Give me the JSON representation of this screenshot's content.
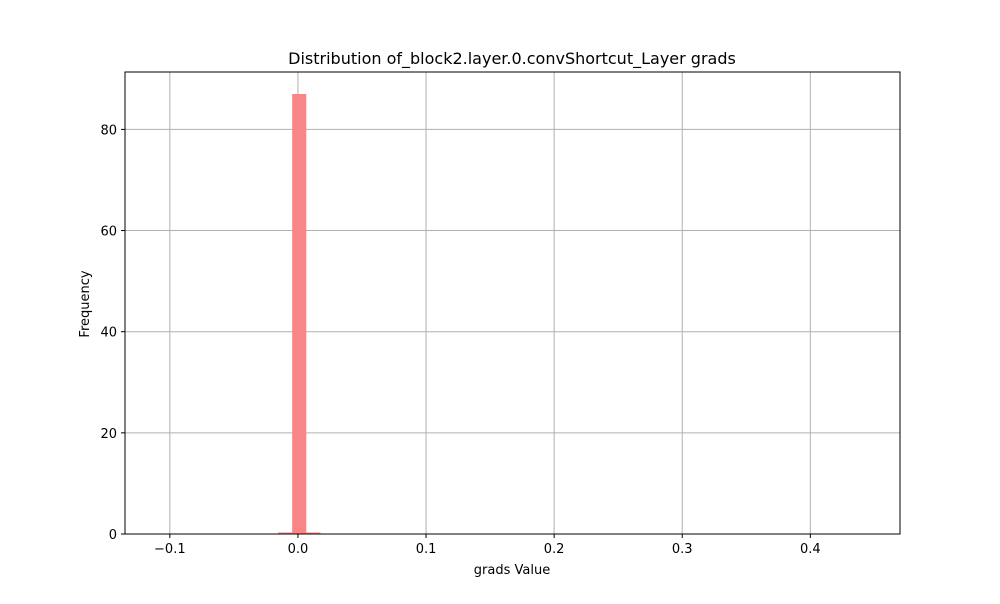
{
  "chart_data": {
    "type": "bar",
    "title": "Distribution of_block2.layer.0.convShortcut_Layer grads",
    "xlabel": "grads Value",
    "ylabel": "Frequency",
    "xlim": [
      -0.135,
      0.47
    ],
    "ylim": [
      0,
      91.35
    ],
    "xticks": [
      -0.1,
      0.0,
      0.1,
      0.2,
      0.3,
      0.4
    ],
    "xtick_labels": [
      "−0.1",
      "0.0",
      "0.1",
      "0.2",
      "0.3",
      "0.4"
    ],
    "yticks": [
      0,
      20,
      40,
      60,
      80
    ],
    "ytick_labels": [
      "0",
      "20",
      "40",
      "60",
      "80"
    ],
    "grid": true,
    "bar_color": "#f88686",
    "bins": [
      {
        "x0": -0.0155,
        "x1": -0.0045,
        "count": 0.3
      },
      {
        "x0": -0.0045,
        "x1": 0.0065,
        "count": 87
      },
      {
        "x0": 0.0065,
        "x1": 0.0175,
        "count": 0.3
      }
    ]
  }
}
